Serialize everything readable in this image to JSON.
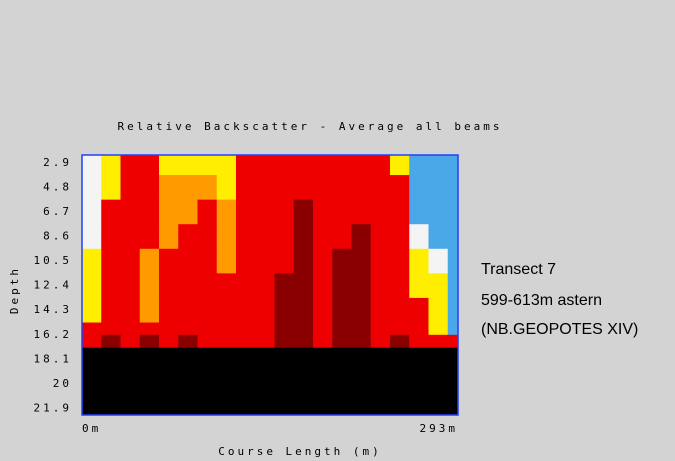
{
  "chart_data": {
    "type": "heatmap",
    "title": "Relative Backscatter - Average all beams",
    "xlabel": "Course Length (m)",
    "ylabel": "Depth",
    "annotations": [
      "Transect 7",
      "599-613m astern",
      "(NB.GEOPOTES XIV)"
    ],
    "xlim": [
      0,
      293
    ],
    "xticks": [
      {
        "value": 0,
        "label": "0m"
      },
      {
        "value": 293,
        "label": "293m"
      }
    ],
    "ylim": [
      22.4,
      2.3
    ],
    "yticks": [
      2.9,
      4.8,
      6.7,
      8.6,
      10.5,
      12.4,
      14.3,
      16.2,
      18.1,
      20.0,
      21.9
    ],
    "xbins": [
      0,
      15,
      30,
      45,
      60,
      75,
      90,
      105,
      120,
      135,
      150,
      165,
      180,
      195,
      210,
      225,
      240,
      255,
      270,
      285,
      293
    ],
    "ybins": [
      2.3,
      3.85,
      5.75,
      7.65,
      9.55,
      11.45,
      13.35,
      15.25,
      16.2,
      17.2,
      22.4
    ],
    "colors": [
      "#000000",
      "#4aa8e8",
      "#f4f4f4",
      "#ffee00",
      "#ff9a00",
      "#ee0000",
      "#8a0000"
    ],
    "z": [
      [
        2,
        3,
        5,
        5,
        3,
        3,
        3,
        3,
        5,
        5,
        5,
        5,
        5,
        5,
        5,
        5,
        3,
        1,
        1,
        1
      ],
      [
        2,
        3,
        5,
        5,
        4,
        4,
        4,
        3,
        5,
        5,
        5,
        5,
        5,
        5,
        5,
        5,
        5,
        1,
        1,
        1
      ],
      [
        2,
        5,
        5,
        5,
        4,
        4,
        5,
        4,
        5,
        5,
        5,
        6,
        5,
        5,
        5,
        5,
        5,
        1,
        1,
        1
      ],
      [
        2,
        5,
        5,
        5,
        4,
        5,
        5,
        4,
        5,
        5,
        5,
        6,
        5,
        5,
        6,
        5,
        5,
        2,
        1,
        1
      ],
      [
        3,
        5,
        5,
        4,
        5,
        5,
        5,
        4,
        5,
        5,
        5,
        6,
        5,
        6,
        6,
        5,
        5,
        3,
        2,
        1
      ],
      [
        3,
        5,
        5,
        4,
        5,
        5,
        5,
        5,
        5,
        5,
        6,
        6,
        5,
        6,
        6,
        5,
        5,
        3,
        3,
        1
      ],
      [
        3,
        5,
        5,
        4,
        5,
        5,
        5,
        5,
        5,
        5,
        6,
        6,
        5,
        6,
        6,
        5,
        5,
        5,
        3,
        1
      ],
      [
        5,
        5,
        5,
        5,
        5,
        5,
        5,
        5,
        5,
        5,
        6,
        6,
        5,
        6,
        6,
        5,
        5,
        5,
        3,
        1
      ],
      [
        5,
        6,
        5,
        6,
        5,
        6,
        5,
        5,
        5,
        5,
        6,
        6,
        5,
        6,
        6,
        5,
        6,
        5,
        5,
        5
      ],
      [
        0,
        0,
        0,
        0,
        0,
        0,
        0,
        0,
        0,
        0,
        0,
        0,
        0,
        0,
        0,
        0,
        0,
        0,
        0,
        0
      ]
    ]
  }
}
